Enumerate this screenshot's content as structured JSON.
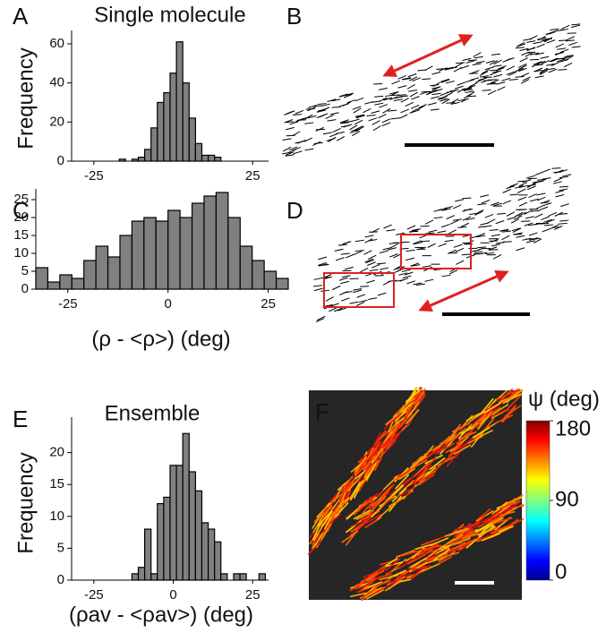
{
  "panel_labels": [
    "A",
    "B",
    "C",
    "D",
    "E",
    "F"
  ],
  "chart_data": [
    {
      "type": "histogram",
      "title": "Single molecule",
      "y_label": "Frequency",
      "bins": [
        -17,
        -15,
        -13,
        -11,
        -9,
        -7,
        -5,
        -3,
        -1,
        1,
        3,
        5,
        7,
        9,
        11,
        13,
        15
      ],
      "values": [
        1,
        0,
        1,
        2,
        6,
        17,
        30,
        35,
        45,
        61,
        40,
        22,
        9,
        3,
        3,
        2
      ],
      "color": "#808080",
      "xlim": [
        -32,
        30
      ],
      "xticks": [
        -25,
        25
      ],
      "ylim": [
        0,
        65
      ],
      "yticks": [
        0,
        20,
        40,
        60
      ]
    },
    {
      "type": "histogram",
      "x_label": "(ρ - <ρ>) (deg)",
      "bins": [
        -33,
        -30,
        -27,
        -24,
        -21,
        -18,
        -15,
        -12,
        -9,
        -6,
        -3,
        0,
        3,
        6,
        9,
        12,
        15,
        18,
        21,
        24,
        27,
        30
      ],
      "values": [
        6,
        2,
        4,
        3,
        8,
        12,
        9,
        15,
        19,
        20,
        19,
        22,
        20,
        24,
        26,
        27,
        20,
        12,
        8,
        5,
        3
      ],
      "color": "#808080",
      "xlim": [
        -33,
        30
      ],
      "xticks": [
        -25,
        0,
        25
      ],
      "ylim": [
        0,
        27
      ],
      "yticks": [
        0,
        5,
        10,
        15,
        20,
        25
      ]
    },
    {
      "type": "histogram",
      "title": "Ensemble",
      "y_label": "Frequency",
      "x_label": "(ρav - <ρav>) (deg)",
      "bins": [
        -13,
        -11,
        -9,
        -7,
        -5,
        -3,
        -1,
        1,
        3,
        5,
        7,
        9,
        11,
        13,
        15,
        17,
        19,
        21,
        23,
        25,
        27,
        29
      ],
      "values": [
        1,
        2,
        8,
        1,
        12,
        13,
        18,
        18,
        23,
        17,
        14,
        9,
        8,
        6,
        1,
        0,
        1,
        1,
        0,
        0,
        1
      ],
      "color": "#808080",
      "xlim": [
        -32,
        30
      ],
      "xticks": [
        -25,
        0,
        25
      ],
      "ylim": [
        0,
        25
      ],
      "yticks": [
        0,
        5,
        10,
        15,
        20
      ]
    }
  ],
  "colorbar": {
    "label": "ψ (deg)",
    "lim": [
      0,
      180
    ],
    "ticks": [
      0,
      90,
      180
    ]
  }
}
